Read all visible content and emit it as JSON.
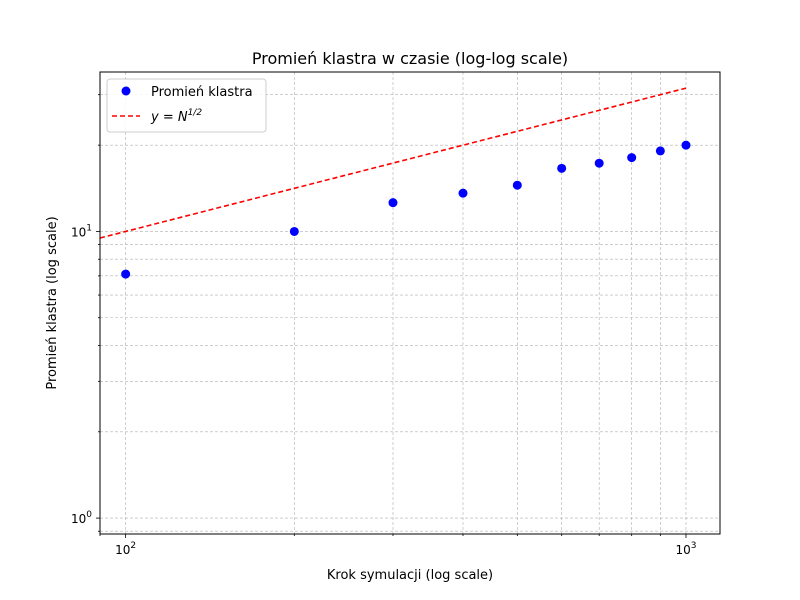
{
  "chart_data": {
    "type": "scatter",
    "title": "Promień klastra w czasie (log-log scale)",
    "xlabel": "Krok symulacji (log scale)",
    "ylabel": "Promień klastra (log scale)",
    "xscale": "log",
    "yscale": "log",
    "xlim": [
      90,
      1150
    ],
    "ylim": [
      0.88,
      36
    ],
    "x_major_ticks": [
      {
        "value": 100,
        "base": "10",
        "exp": "2"
      },
      {
        "value": 1000,
        "base": "10",
        "exp": "3"
      }
    ],
    "y_major_ticks": [
      {
        "value": 1,
        "label": "10",
        "sup": "0"
      },
      {
        "value": 10,
        "label": "10",
        "sup": "1"
      }
    ],
    "grid": true,
    "legend_position": "upper-left",
    "series": [
      {
        "name": "Promień klastra",
        "kind": "scatter",
        "color": "#0000ff",
        "x": [
          100,
          200,
          300,
          400,
          500,
          600,
          700,
          800,
          900,
          1000
        ],
        "y": [
          7.1,
          10.0,
          12.6,
          13.6,
          14.5,
          16.6,
          17.3,
          18.1,
          19.1,
          20.0
        ]
      },
      {
        "name": "y = N^{1/2}",
        "legend_main": "y = N",
        "legend_sup": "1/2",
        "kind": "line",
        "style": "dashed",
        "color": "#ff0000",
        "x": [
          90,
          100,
          200,
          300,
          400,
          500,
          600,
          700,
          800,
          900,
          1000
        ],
        "y": [
          9.4868,
          10.0,
          14.1421,
          17.3205,
          20.0,
          22.3607,
          24.4949,
          26.4575,
          28.2843,
          30.0,
          31.6228
        ]
      }
    ]
  }
}
